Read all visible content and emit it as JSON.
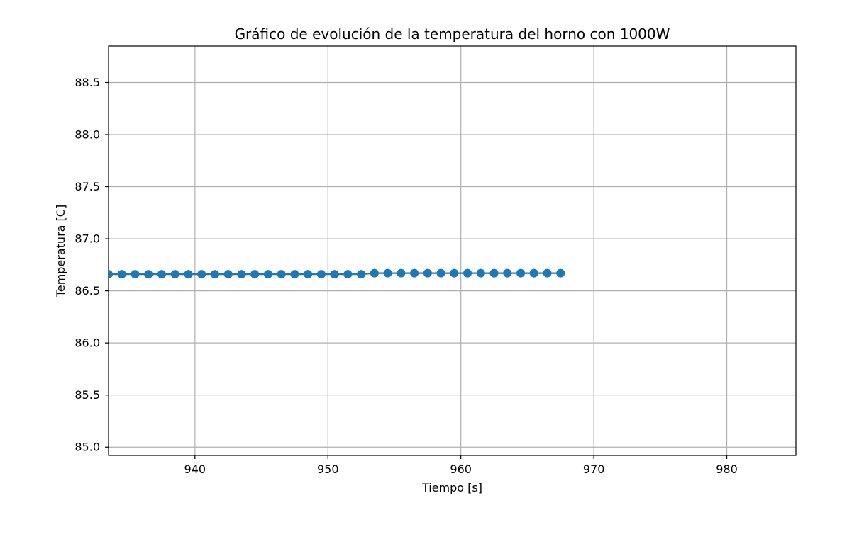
{
  "chart_data": {
    "type": "line",
    "title": "Gráfico de evolución de la temperatura del horno con 1000W",
    "xlabel": "Tiempo [s]",
    "ylabel": "Temperatura [C]",
    "xlim": [
      933.5,
      985.2
    ],
    "ylim": [
      84.92,
      88.85
    ],
    "xticks": [
      940,
      950,
      960,
      970,
      980
    ],
    "yticks": [
      85.0,
      85.5,
      86.0,
      86.5,
      87.0,
      87.5,
      88.0,
      88.5
    ],
    "xtick_labels": [
      "940",
      "950",
      "960",
      "970",
      "980"
    ],
    "ytick_labels": [
      "85.0",
      "85.5",
      "86.0",
      "86.5",
      "87.0",
      "87.5",
      "88.0",
      "88.5"
    ],
    "grid": true,
    "marker": "circle",
    "color": "#1f77b4",
    "series": [
      {
        "x": [
          933.5,
          934.5,
          935.5,
          936.5,
          937.5,
          938.5,
          939.5,
          940.5,
          941.5,
          942.5,
          943.5,
          944.5,
          945.5,
          946.5,
          947.5,
          948.5,
          949.5,
          950.5,
          951.5,
          952.5,
          953.5,
          954.5,
          955.5,
          956.5,
          957.5,
          958.5,
          959.5,
          960.5,
          961.5,
          962.5,
          963.5,
          964.5,
          965.5,
          966.5,
          967.5
        ],
        "values": [
          86.66,
          86.66,
          86.66,
          86.66,
          86.66,
          86.66,
          86.66,
          86.66,
          86.66,
          86.66,
          86.66,
          86.66,
          86.66,
          86.66,
          86.66,
          86.66,
          86.66,
          86.66,
          86.66,
          86.66,
          86.67,
          86.67,
          86.67,
          86.67,
          86.67,
          86.67,
          86.67,
          86.67,
          86.67,
          86.67,
          86.67,
          86.67,
          86.67,
          86.67,
          86.67
        ]
      }
    ]
  }
}
